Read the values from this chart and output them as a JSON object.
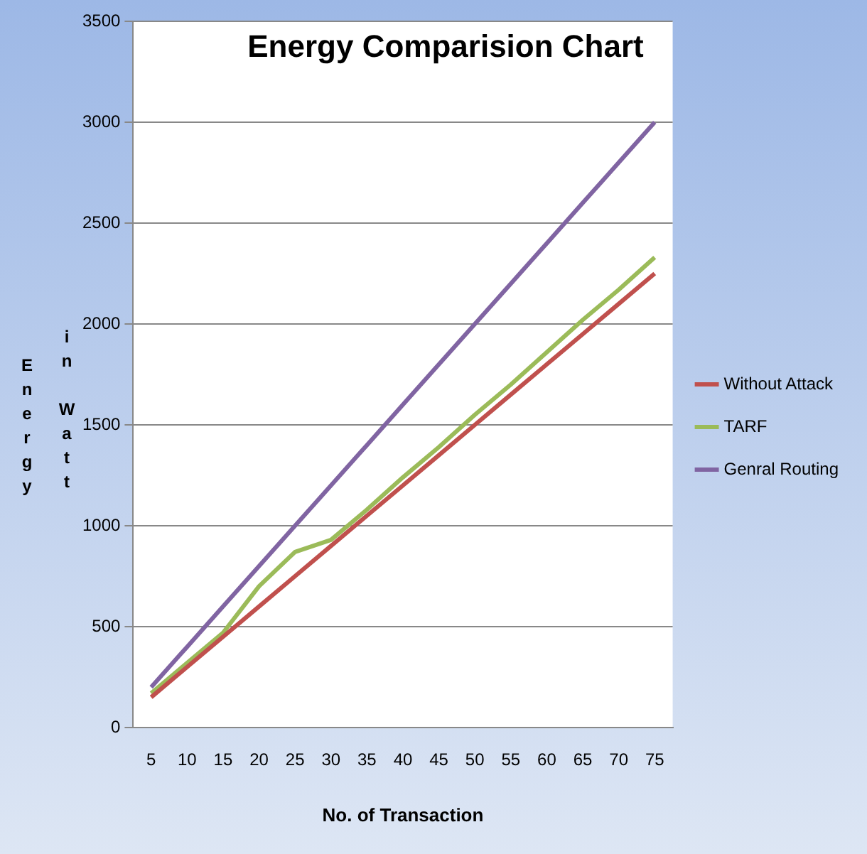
{
  "chart_data": {
    "type": "line",
    "title": "Energy Comparision Chart",
    "xlabel": "No. of Transaction",
    "ylabel": "Energy in Watt",
    "categories": [
      "5",
      "10",
      "15",
      "20",
      "25",
      "30",
      "35",
      "40",
      "45",
      "50",
      "55",
      "60",
      "65",
      "70",
      "75"
    ],
    "series": [
      {
        "name": "Without Attack",
        "color": "#c0504d",
        "values": [
          150,
          300,
          450,
          600,
          750,
          900,
          1050,
          1200,
          1350,
          1500,
          1650,
          1800,
          1950,
          2100,
          2250
        ]
      },
      {
        "name": "TARF",
        "color": "#9bbb59",
        "values": [
          170,
          320,
          470,
          700,
          870,
          930,
          1080,
          1240,
          1390,
          1550,
          1700,
          1860,
          2020,
          2170,
          2330
        ]
      },
      {
        "name": "Genral Routing",
        "color": "#8064a2",
        "values": [
          200,
          400,
          600,
          800,
          1000,
          1200,
          1400,
          1600,
          1800,
          2000,
          2200,
          2400,
          2600,
          2800,
          3000
        ]
      }
    ],
    "ylim": [
      0,
      3500
    ],
    "yticks": [
      0,
      500,
      1000,
      1500,
      2000,
      2500,
      3000,
      3500
    ],
    "grid": "y",
    "legend": "right",
    "marker": "none",
    "line_style": "solid"
  }
}
